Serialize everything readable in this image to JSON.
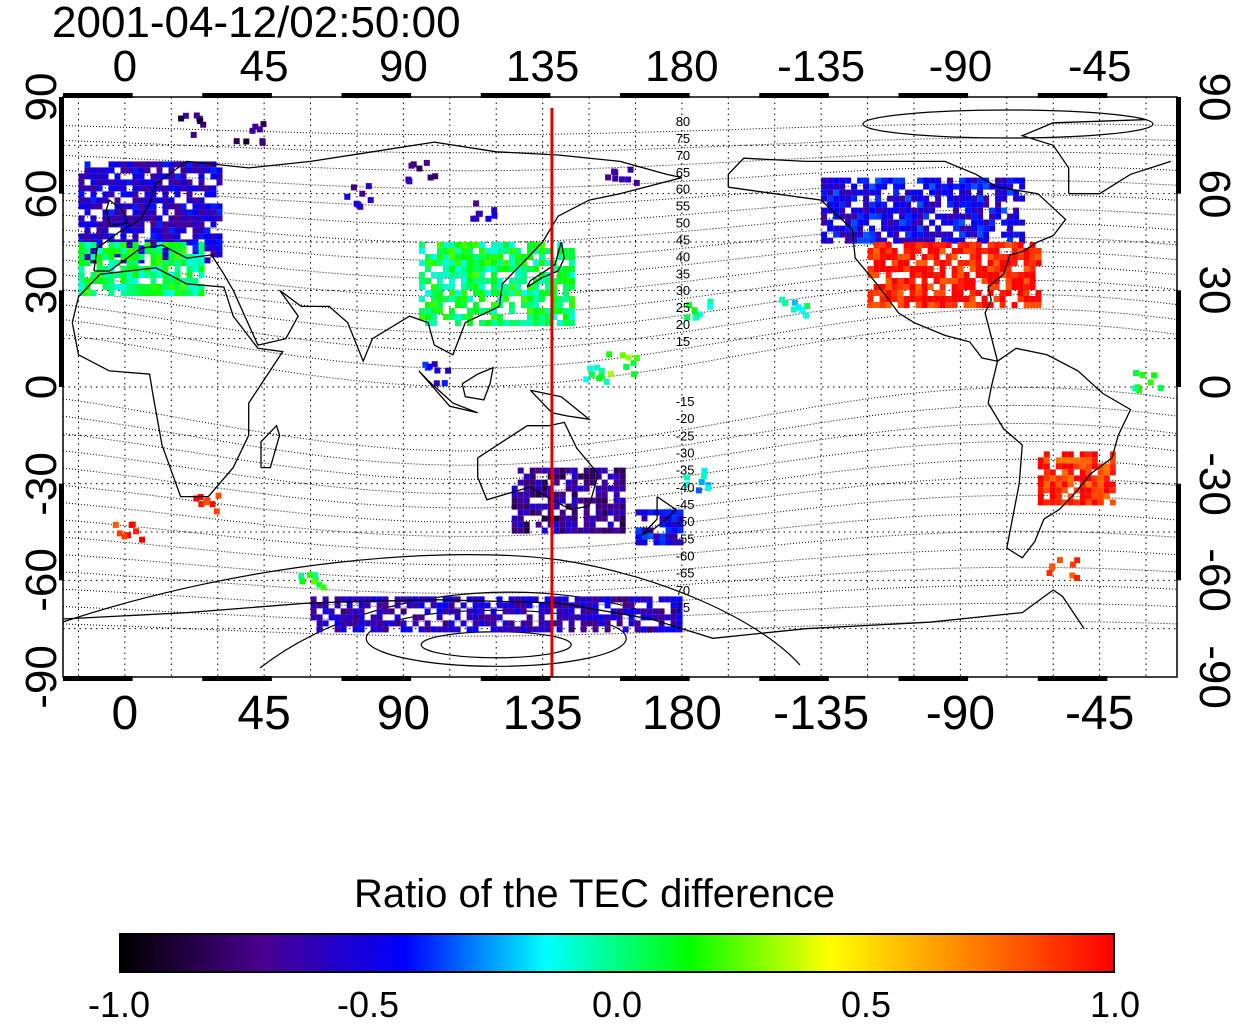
{
  "title": "2001-04-12/02:50:00",
  "map": {
    "top_longitude_labels": [
      "0",
      "45",
      "90",
      "135",
      "180",
      "-135",
      "-90",
      "-45"
    ],
    "bottom_longitude_labels": [
      "0",
      "45",
      "90",
      "135",
      "180",
      "-135",
      "-90",
      "-45"
    ],
    "left_latitude_labels": [
      "90",
      "60",
      "30",
      "0",
      "-30",
      "-60",
      "-90"
    ],
    "right_latitude_labels": [
      "90",
      "60",
      "30",
      "0",
      "-30",
      "-60",
      "-90"
    ],
    "longitude_range": [
      -20,
      340
    ],
    "latitude_range": [
      -90,
      90
    ],
    "grid": "dotted, every 15 degrees",
    "marker_longitude": 138,
    "marker_color": "#e00000",
    "magnetic_latitude_labels_north": [
      "80",
      "75",
      "70",
      "65",
      "60",
      "55",
      "50",
      "45",
      "40",
      "35",
      "30",
      "25",
      "20",
      "15"
    ],
    "magnetic_latitude_labels_south": [
      "-15",
      "-20",
      "-25",
      "-30",
      "-35",
      "-40",
      "-45",
      "-50",
      "-55",
      "-60",
      "-65",
      "70",
      "75"
    ]
  },
  "chart_data": {
    "type": "heatmap",
    "title": "2001-04-12/02:50:00",
    "colorbar": {
      "label": "Ratio of the TEC difference",
      "range": [
        -1.0,
        1.0
      ],
      "tick_labels": [
        "-1.0",
        "-0.5",
        "0.0",
        "0.5",
        "1.0"
      ],
      "colormap": [
        "#000000",
        "#4a0090",
        "#0000ff",
        "#00ffff",
        "#00ff00",
        "#ffff00",
        "#ff8000",
        "#ff0000"
      ]
    },
    "regions": [
      {
        "lon_range": [
          -15,
          30
        ],
        "lat_range": [
          40,
          70
        ],
        "value": -0.55
      },
      {
        "lon_range": [
          -15,
          25
        ],
        "lat_range": [
          30,
          45
        ],
        "value": 0.05
      },
      {
        "lon_range": [
          95,
          145
        ],
        "lat_range": [
          20,
          45
        ],
        "value": 0.05
      },
      {
        "lon_range": [
          225,
          290
        ],
        "lat_range": [
          45,
          65
        ],
        "value": -0.5
      },
      {
        "lon_range": [
          240,
          295
        ],
        "lat_range": [
          25,
          45
        ],
        "value": 0.95
      },
      {
        "lon_range": [
          295,
          320
        ],
        "lat_range": [
          -35,
          -20
        ],
        "value": 0.9
      },
      {
        "lon_range": [
          125,
          160
        ],
        "lat_range": [
          -45,
          -25
        ],
        "value": -0.7
      },
      {
        "lon_range": [
          165,
          180
        ],
        "lat_range": [
          -48,
          -38
        ],
        "value": -0.5
      },
      {
        "lon_range": [
          60,
          180
        ],
        "lat_range": [
          -75,
          -65
        ],
        "value": -0.6
      }
    ]
  }
}
